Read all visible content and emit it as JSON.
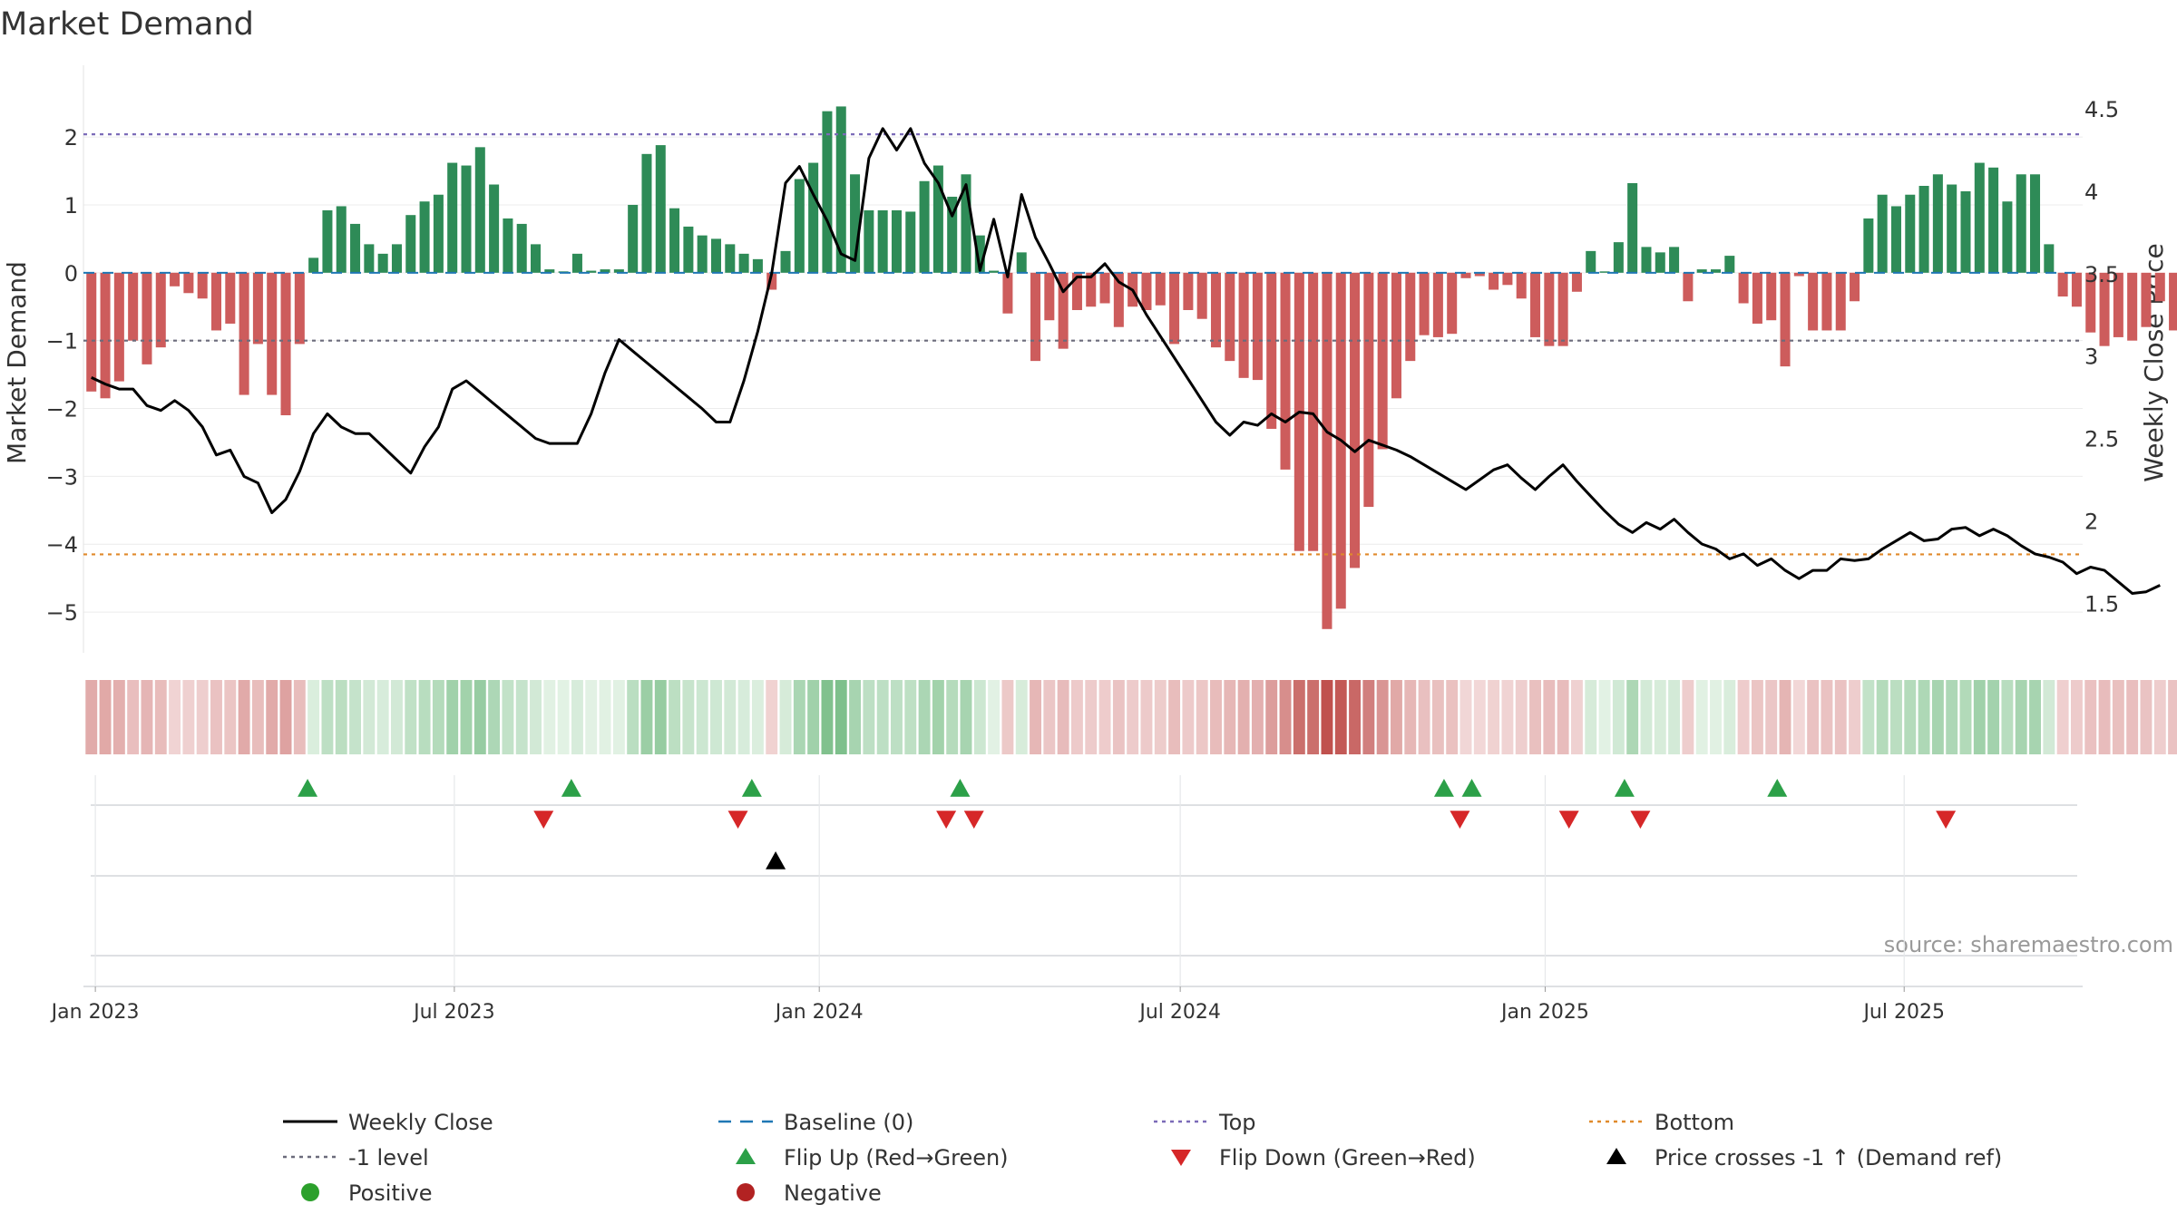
{
  "chart_data": {
    "type": "bar",
    "title": "Market Demand",
    "ylabel": "Market Demand",
    "ylabel_right": "Weekly Close Price",
    "source": "source: sharemaestro.com",
    "ylim": [
      -5.6,
      2.95
    ],
    "ylim_right": [
      1.2,
      4.72
    ],
    "xlim": [
      "2022-12-26",
      "2025-09-29"
    ],
    "y_ticks": [
      {
        "value": 2,
        "label": "2"
      },
      {
        "value": 1,
        "label": "1"
      },
      {
        "value": 0,
        "label": "0"
      },
      {
        "value": -1,
        "label": "−1"
      },
      {
        "value": -2,
        "label": "−2"
      },
      {
        "value": -3,
        "label": "−3"
      },
      {
        "value": -4,
        "label": "−4"
      },
      {
        "value": -5,
        "label": "−5"
      }
    ],
    "y_right_ticks": [
      {
        "value": 4.5,
        "label": "4.5"
      },
      {
        "value": 4,
        "label": "4"
      },
      {
        "value": 3.5,
        "label": "3.5"
      },
      {
        "value": 3,
        "label": "3"
      },
      {
        "value": 2.5,
        "label": "2.5"
      },
      {
        "value": 2,
        "label": "2"
      },
      {
        "value": 1.5,
        "label": "1.5"
      }
    ],
    "x_ticks": [
      {
        "date": "2023-01-01",
        "label": "Jan 2023"
      },
      {
        "date": "2023-07-01",
        "label": "Jul 2023"
      },
      {
        "date": "2024-01-01",
        "label": "Jan 2024"
      },
      {
        "date": "2024-07-01",
        "label": "Jul 2024"
      },
      {
        "date": "2025-01-01",
        "label": "Jan 2025"
      },
      {
        "date": "2025-07-01",
        "label": "Jul 2025"
      }
    ],
    "first_week": "2022-12-30",
    "week_step_days": 7,
    "demand": [
      -1.75,
      -1.85,
      -1.6,
      -1.0,
      -1.35,
      -1.1,
      -0.2,
      -0.3,
      -0.38,
      -0.85,
      -0.75,
      -1.8,
      -1.05,
      -1.8,
      -2.1,
      -1.05,
      0.22,
      0.92,
      0.98,
      0.72,
      0.42,
      0.28,
      0.42,
      0.85,
      1.05,
      1.15,
      1.62,
      1.58,
      1.85,
      1.3,
      0.8,
      0.72,
      0.42,
      0.05,
      0.02,
      0.28,
      0.03,
      0.05,
      0.05,
      1.0,
      1.75,
      1.88,
      0.95,
      0.68,
      0.55,
      0.5,
      0.42,
      0.28,
      0.2,
      -0.25,
      0.32,
      1.38,
      1.62,
      2.38,
      2.45,
      1.45,
      0.92,
      0.92,
      0.92,
      0.9,
      1.35,
      1.58,
      1.12,
      1.45,
      0.55,
      0.03,
      -0.6,
      0.3,
      -1.3,
      -0.7,
      -1.12,
      -0.55,
      -0.5,
      -0.45,
      -0.8,
      -0.5,
      -0.55,
      -0.48,
      -1.05,
      -0.55,
      -0.68,
      -1.1,
      -1.3,
      -1.55,
      -1.58,
      -2.3,
      -2.9,
      -4.1,
      -4.1,
      -5.25,
      -4.95,
      -4.35,
      -3.45,
      -2.6,
      -1.85,
      -1.3,
      -0.92,
      -0.95,
      -0.9,
      -0.08,
      -0.05,
      -0.25,
      -0.18,
      -0.38,
      -0.95,
      -1.08,
      -1.08,
      -0.28,
      0.32,
      0.02,
      0.45,
      1.32,
      0.38,
      0.3,
      0.38,
      -0.42,
      0.05,
      0.05,
      0.25,
      -0.45,
      -0.75,
      -0.7,
      -1.38,
      -0.05,
      -0.85,
      -0.85,
      -0.85,
      -0.42,
      0.8,
      1.15,
      0.98,
      1.15,
      1.28,
      1.45,
      1.3,
      1.2,
      1.62,
      1.55,
      1.05,
      1.45,
      1.45,
      0.42,
      -0.35,
      -0.5,
      -0.88,
      -1.08,
      -0.95,
      -1.0,
      -0.8,
      -0.42,
      -0.85,
      -0.7
    ],
    "weekly_close": [
      2.87,
      2.83,
      2.8,
      2.8,
      2.7,
      2.67,
      2.73,
      2.67,
      2.57,
      2.4,
      2.43,
      2.27,
      2.23,
      2.05,
      2.13,
      2.3,
      2.53,
      2.65,
      2.57,
      2.53,
      2.53,
      2.45,
      2.37,
      2.29,
      2.45,
      2.57,
      2.8,
      2.85,
      2.78,
      2.71,
      2.64,
      2.57,
      2.5,
      2.47,
      2.47,
      2.47,
      2.65,
      2.9,
      3.1,
      3.03,
      2.96,
      2.89,
      2.82,
      2.75,
      2.68,
      2.6,
      2.6,
      2.85,
      3.15,
      3.5,
      4.05,
      4.15,
      3.98,
      3.82,
      3.62,
      3.58,
      4.2,
      4.38,
      4.25,
      4.38,
      4.17,
      4.05,
      3.85,
      4.04,
      3.52,
      3.83,
      3.48,
      3.98,
      3.72,
      3.56,
      3.39,
      3.48,
      3.48,
      3.56,
      3.45,
      3.4,
      3.25,
      3.12,
      2.99,
      2.86,
      2.73,
      2.6,
      2.52,
      2.6,
      2.58,
      2.65,
      2.6,
      2.66,
      2.65,
      2.54,
      2.49,
      2.42,
      2.49,
      2.46,
      2.43,
      2.39,
      2.34,
      2.29,
      2.24,
      2.19,
      2.25,
      2.31,
      2.34,
      2.26,
      2.19,
      2.27,
      2.34,
      2.24,
      2.15,
      2.06,
      1.98,
      1.93,
      1.99,
      1.95,
      2.01,
      1.93,
      1.86,
      1.83,
      1.77,
      1.8,
      1.73,
      1.77,
      1.7,
      1.65,
      1.7,
      1.7,
      1.77,
      1.76,
      1.77,
      1.83,
      1.88,
      1.93,
      1.88,
      1.89,
      1.95,
      1.96,
      1.91,
      1.95,
      1.91,
      1.85,
      1.8,
      1.78,
      1.75,
      1.68,
      1.72,
      1.7,
      1.63,
      1.56,
      1.57,
      1.61
    ],
    "marker_rows": {
      "flip_up_dates": [
        "2023-04-18",
        "2023-08-29",
        "2023-11-28",
        "2024-03-12",
        "2024-11-11",
        "2024-11-25",
        "2025-02-10",
        "2025-04-28"
      ],
      "flip_down_dates": [
        "2023-08-15",
        "2023-11-21",
        "2024-03-05",
        "2024-03-19",
        "2024-11-19",
        "2025-01-13",
        "2025-02-18",
        "2025-07-22"
      ],
      "demand_ref_dates": [
        "2023-12-10"
      ]
    },
    "legend": [
      {
        "key": "weekly_close",
        "label": "Weekly Close",
        "symbol": "line",
        "color": "#000000"
      },
      {
        "key": "baseline",
        "label": "Baseline (0)",
        "symbol": "dash",
        "color": "#1f77b4"
      },
      {
        "key": "top",
        "label": "Top",
        "symbol": "dot",
        "color": "#7b6bb8"
      },
      {
        "key": "bottom",
        "label": "Bottom",
        "symbol": "dot",
        "color": "#e08a2b"
      },
      {
        "key": "minus1",
        "label": "-1 level",
        "symbol": "dot",
        "color": "#6b6b7b"
      },
      {
        "key": "flip_up",
        "label": "Flip Up (Red→Green)",
        "symbol": "tri-up",
        "color": "#2ca048"
      },
      {
        "key": "flip_down",
        "label": "Flip Down (Green→Red)",
        "symbol": "tri-down",
        "color": "#d62728"
      },
      {
        "key": "demand_ref",
        "label": "Price crosses -1 ↑ (Demand ref)",
        "symbol": "tri-up",
        "color": "#000000"
      },
      {
        "key": "positive",
        "label": "Positive",
        "symbol": "circle",
        "color": "#2ca02c"
      },
      {
        "key": "negative",
        "label": "Negative",
        "symbol": "circle",
        "color": "#b22222"
      }
    ],
    "reference_lines": {
      "top": 2.04,
      "minus1": -1.0,
      "bottom": -4.15,
      "baseline": 0
    },
    "colors": {
      "positive_bar": "#2e8b57",
      "negative_bar": "#cd5c5c",
      "price_line": "#000000"
    }
  }
}
